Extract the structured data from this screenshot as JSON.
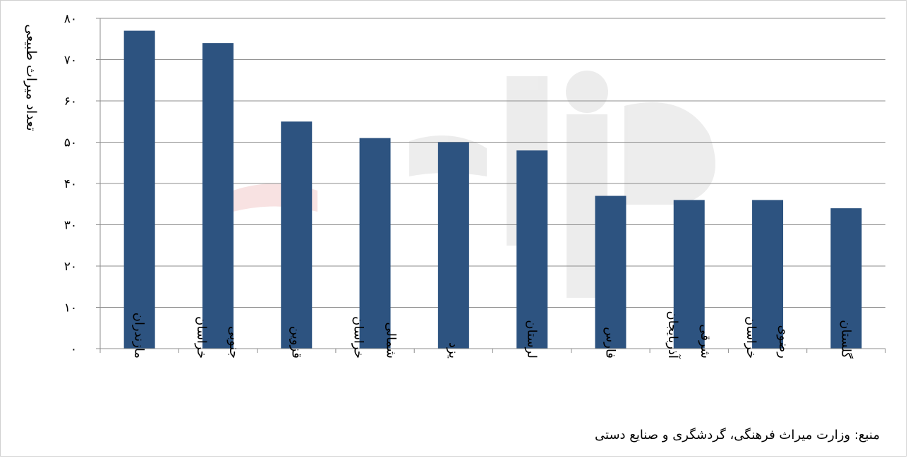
{
  "chart_data": {
    "type": "bar",
    "ylabel": "تعداد میراث طبیعی",
    "ylim": [
      0,
      80
    ],
    "yticks": [
      0,
      10,
      20,
      30,
      40,
      50,
      60,
      70,
      80
    ],
    "ytick_labels": [
      "۰",
      "۱۰",
      "۲۰",
      "۳۰",
      "۴۰",
      "۵۰",
      "۶۰",
      "۷۰",
      "۸۰"
    ],
    "grid": true,
    "bar_color": "#2d5380",
    "categories": [
      [
        "مازندران"
      ],
      [
        "خراسان",
        "جنوبی"
      ],
      [
        "قزوین"
      ],
      [
        "خراسان",
        "شمالی"
      ],
      [
        "یزد"
      ],
      [
        "لرستان"
      ],
      [
        "فارس"
      ],
      [
        "آذربایجان",
        "شرقی"
      ],
      [
        "خراسان",
        "رضوی"
      ],
      [
        "گلستان"
      ]
    ],
    "values": [
      77,
      74,
      55,
      51,
      50,
      48,
      37,
      36,
      36,
      34
    ]
  },
  "source": "منبع: وزارت میراث فرهنگی، گردشگری و صنایع دستی"
}
